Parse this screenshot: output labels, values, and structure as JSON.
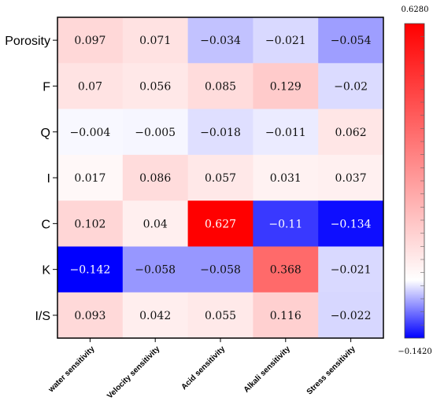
{
  "chart_data": {
    "type": "heatmap",
    "rows": [
      "Porosity",
      "F",
      "Q",
      "I",
      "C",
      "K",
      "I/S"
    ],
    "columns": [
      "water sensitivity",
      "Velocity sensitivity",
      "Acid sensitivity",
      "Alkali sensitivity",
      "Stress sensitivity"
    ],
    "values": [
      [
        0.097,
        0.071,
        -0.034,
        -0.021,
        -0.054
      ],
      [
        0.07,
        0.056,
        0.085,
        0.129,
        -0.02
      ],
      [
        -0.004,
        -0.005,
        -0.018,
        -0.011,
        0.062
      ],
      [
        0.017,
        0.086,
        0.057,
        0.031,
        0.037
      ],
      [
        0.102,
        0.04,
        0.627,
        -0.11,
        -0.134
      ],
      [
        -0.142,
        -0.058,
        -0.058,
        0.368,
        -0.021
      ],
      [
        0.093,
        0.042,
        0.055,
        0.116,
        -0.022
      ]
    ],
    "value_labels": [
      [
        "0.097",
        "0.071",
        "−0.034",
        "−0.021",
        "−0.054"
      ],
      [
        "0.07",
        "0.056",
        "0.085",
        "0.129",
        "−0.02"
      ],
      [
        "−0.004",
        "−0.005",
        "−0.018",
        "−0.011",
        "0.062"
      ],
      [
        "0.017",
        "0.086",
        "0.057",
        "0.031",
        "0.037"
      ],
      [
        "0.102",
        "0.04",
        "0.627",
        "−0.11",
        "−0.134"
      ],
      [
        "−0.142",
        "−0.058",
        "−0.058",
        "0.368",
        "−0.021"
      ],
      [
        "0.093",
        "0.042",
        "0.055",
        "0.116",
        "−0.022"
      ]
    ],
    "colorbar": {
      "min": -0.142,
      "max": 0.628,
      "min_label": "−0.1420",
      "max_label": "0.6280",
      "colors": [
        "#0000ff",
        "#ffffff",
        "#ff0000"
      ]
    },
    "title": "",
    "xlabel": "",
    "ylabel": "",
    "grid": false
  }
}
